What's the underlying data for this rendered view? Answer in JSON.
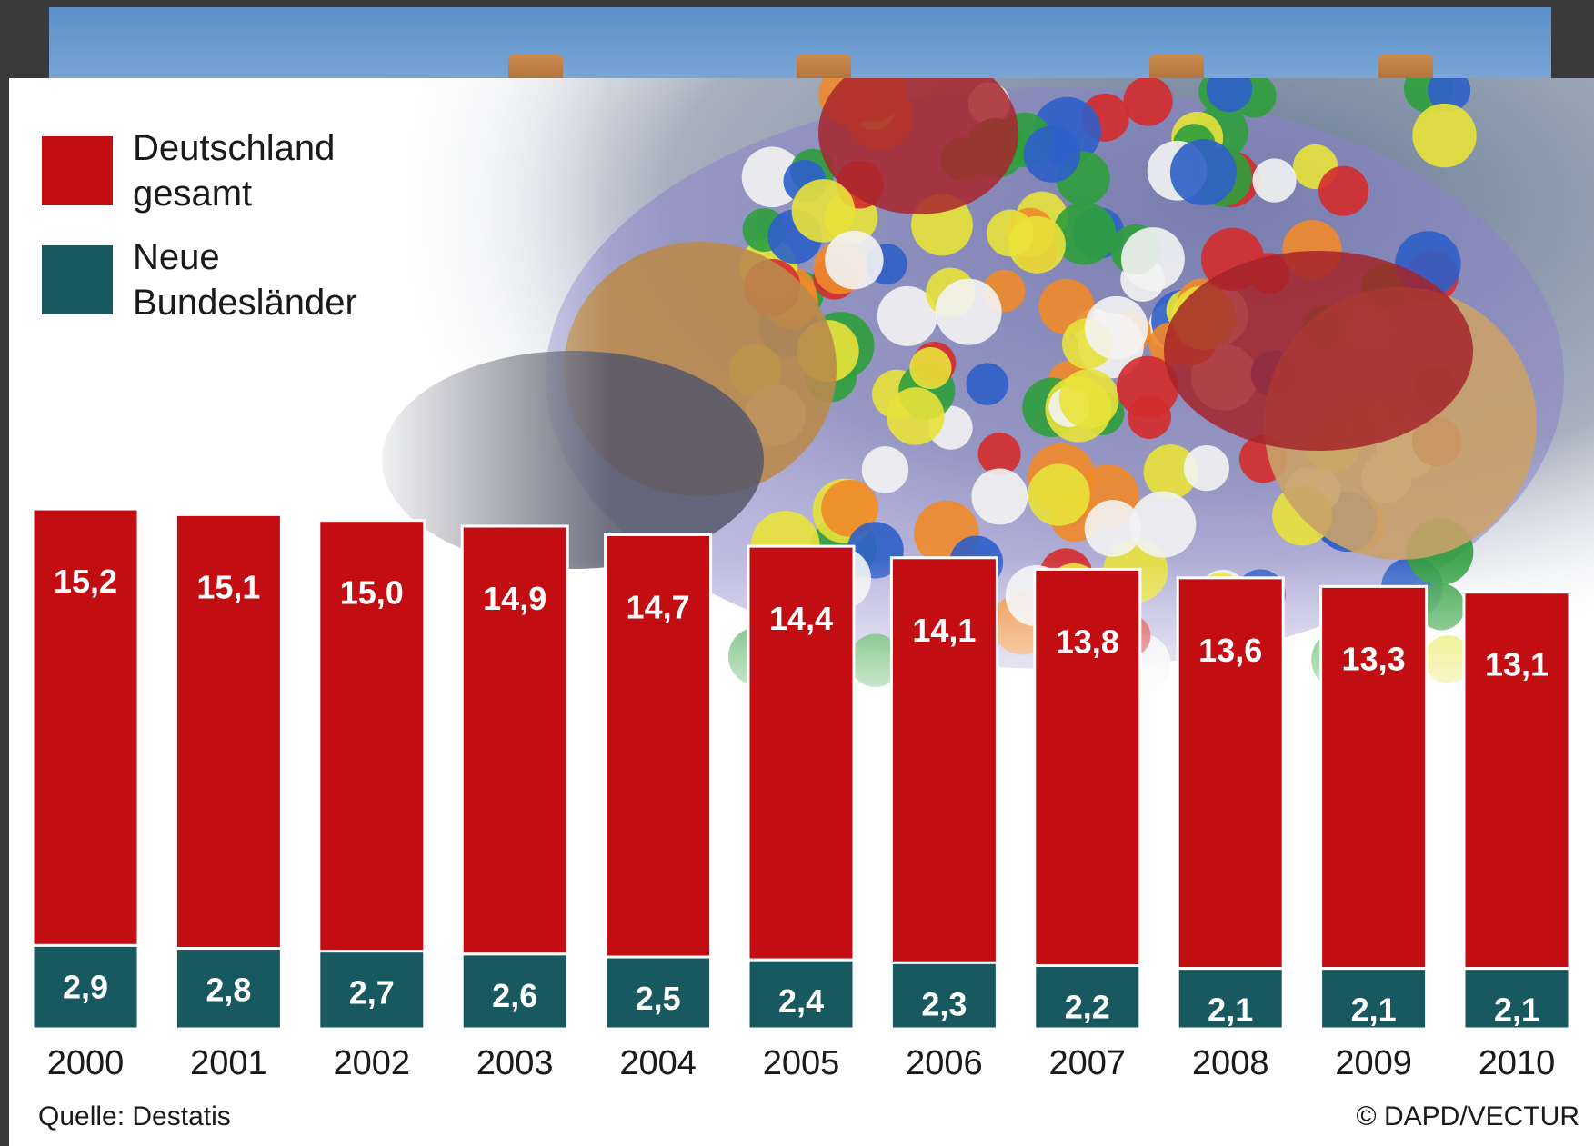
{
  "colors": {
    "deutschland": "#c20e12",
    "neue_bundeslaender": "#17595e",
    "value_label": "#ffffff",
    "text": "#1a1a1a"
  },
  "legend": [
    {
      "label": "Deutschland\ngesamt",
      "color": "#c20e12"
    },
    {
      "label": "Neue\nBundesländer",
      "color": "#17595e"
    }
  ],
  "source": "Quelle: Destatis",
  "credit": "© DAPD/VECTUR",
  "chart_data": {
    "type": "bar",
    "categories": [
      "2000",
      "2001",
      "2002",
      "2003",
      "2004",
      "2005",
      "2006",
      "2007",
      "2008",
      "2009",
      "2010"
    ],
    "series": [
      {
        "name": "Deutschland gesamt",
        "values": [
          15.2,
          15.1,
          15.0,
          14.9,
          14.7,
          14.4,
          14.1,
          13.8,
          13.6,
          13.3,
          13.1
        ],
        "labels": [
          "15,2",
          "15,1",
          "15,0",
          "14,9",
          "14,7",
          "14,4",
          "14,1",
          "13,8",
          "13,6",
          "13,3",
          "13,1"
        ]
      },
      {
        "name": "Neue Bundesländer",
        "values": [
          2.9,
          2.8,
          2.7,
          2.6,
          2.5,
          2.4,
          2.3,
          2.2,
          2.1,
          2.1,
          2.1
        ],
        "labels": [
          "2,9",
          "2,8",
          "2,7",
          "2,6",
          "2,5",
          "2,4",
          "2,3",
          "2,2",
          "2,1",
          "2,1",
          "2,1"
        ]
      }
    ],
    "title": "",
    "xlabel": "",
    "ylabel": "",
    "layout_note_unused": null,
    "grid": false,
    "legend_position": "top-left"
  }
}
